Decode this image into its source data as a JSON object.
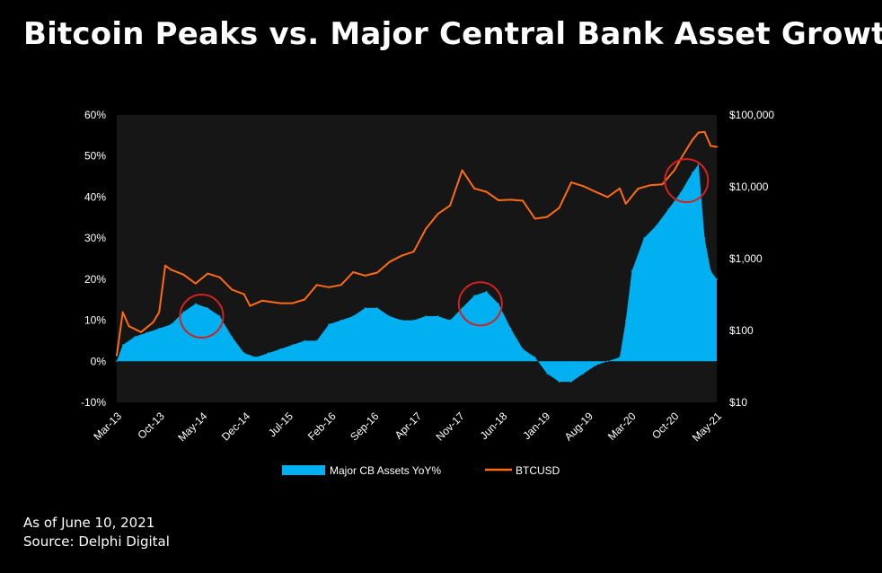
{
  "title": "Bitcoin Peaks vs. Major Central Bank Asset Growth",
  "footer": {
    "as_of": "As of June 10, 2021",
    "source": "Source: Delphi Digital"
  },
  "colors": {
    "background": "#000000",
    "plot_background": "#161616",
    "cb_assets": "#00b0f0",
    "btc": "#ff6a13",
    "highlight_circle": "#d62020"
  },
  "chart_data": {
    "type": "area",
    "title": "Bitcoin Peaks vs. Major Central Bank Asset Growth",
    "x_tick_labels": [
      "Mar-13",
      "Oct-13",
      "May-14",
      "Dec-14",
      "Jul-15",
      "Feb-16",
      "Sep-16",
      "Apr-17",
      "Nov-17",
      "Jun-18",
      "Jan-19",
      "Aug-19",
      "Mar-20",
      "Oct-20",
      "May-21"
    ],
    "x_range": [
      "2013-03",
      "2021-06"
    ],
    "y_left": {
      "tick_labels": [
        "60%",
        "50%",
        "40%",
        "30%",
        "20%",
        "10%",
        "0%",
        "-10%"
      ],
      "range": [
        -10,
        60
      ],
      "unit": "%"
    },
    "y_right": {
      "tick_labels": [
        "$100,000",
        "$10,000",
        "$1,000",
        "$100",
        "$10"
      ],
      "range": [
        10,
        100000
      ],
      "scale": "log"
    },
    "legend": {
      "position": "bottom-center",
      "entries": [
        "Major CB Assets YoY%",
        "BTCUSD"
      ]
    },
    "series": [
      {
        "name": "Major CB Assets YoY%",
        "kind": "area",
        "axis": "left",
        "points": [
          [
            "2013-03",
            0
          ],
          [
            "2013-04",
            4
          ],
          [
            "2013-06",
            6
          ],
          [
            "2013-08",
            7
          ],
          [
            "2013-10",
            8
          ],
          [
            "2013-12",
            9
          ],
          [
            "2014-02",
            12
          ],
          [
            "2014-04",
            14
          ],
          [
            "2014-06",
            13
          ],
          [
            "2014-08",
            11
          ],
          [
            "2014-10",
            6
          ],
          [
            "2014-12",
            2
          ],
          [
            "2015-02",
            1
          ],
          [
            "2015-04",
            2
          ],
          [
            "2015-06",
            3
          ],
          [
            "2015-08",
            4
          ],
          [
            "2015-10",
            5
          ],
          [
            "2015-12",
            5
          ],
          [
            "2016-02",
            9
          ],
          [
            "2016-04",
            10
          ],
          [
            "2016-06",
            11
          ],
          [
            "2016-08",
            13
          ],
          [
            "2016-10",
            13
          ],
          [
            "2016-12",
            11
          ],
          [
            "2017-02",
            10
          ],
          [
            "2017-04",
            10
          ],
          [
            "2017-06",
            11
          ],
          [
            "2017-08",
            11
          ],
          [
            "2017-10",
            10
          ],
          [
            "2017-12",
            13
          ],
          [
            "2018-02",
            16
          ],
          [
            "2018-04",
            17
          ],
          [
            "2018-06",
            14
          ],
          [
            "2018-08",
            8
          ],
          [
            "2018-10",
            3
          ],
          [
            "2018-12",
            1
          ],
          [
            "2019-02",
            -3
          ],
          [
            "2019-04",
            -5
          ],
          [
            "2019-06",
            -5
          ],
          [
            "2019-08",
            -3
          ],
          [
            "2019-10",
            -1
          ],
          [
            "2019-12",
            0
          ],
          [
            "2020-02",
            1
          ],
          [
            "2020-03",
            10
          ],
          [
            "2020-04",
            22
          ],
          [
            "2020-06",
            30
          ],
          [
            "2020-08",
            33
          ],
          [
            "2020-10",
            37
          ],
          [
            "2020-12",
            41
          ],
          [
            "2021-02",
            46
          ],
          [
            "2021-03",
            48
          ],
          [
            "2021-04",
            30
          ],
          [
            "2021-05",
            22
          ],
          [
            "2021-06",
            20
          ]
        ]
      },
      {
        "name": "BTCUSD",
        "kind": "line",
        "axis": "right",
        "points": [
          [
            "2013-03",
            45
          ],
          [
            "2013-04",
            180
          ],
          [
            "2013-05",
            115
          ],
          [
            "2013-07",
            95
          ],
          [
            "2013-09",
            130
          ],
          [
            "2013-10",
            180
          ],
          [
            "2013-11",
            800
          ],
          [
            "2013-12",
            700
          ],
          [
            "2014-02",
            600
          ],
          [
            "2014-04",
            450
          ],
          [
            "2014-06",
            620
          ],
          [
            "2014-08",
            550
          ],
          [
            "2014-10",
            370
          ],
          [
            "2014-12",
            320
          ],
          [
            "2015-01",
            220
          ],
          [
            "2015-03",
            260
          ],
          [
            "2015-06",
            240
          ],
          [
            "2015-08",
            240
          ],
          [
            "2015-10",
            270
          ],
          [
            "2015-12",
            430
          ],
          [
            "2016-02",
            400
          ],
          [
            "2016-04",
            430
          ],
          [
            "2016-06",
            650
          ],
          [
            "2016-08",
            580
          ],
          [
            "2016-10",
            640
          ],
          [
            "2016-12",
            900
          ],
          [
            "2017-02",
            1100
          ],
          [
            "2017-04",
            1250
          ],
          [
            "2017-06",
            2600
          ],
          [
            "2017-08",
            4200
          ],
          [
            "2017-10",
            5500
          ],
          [
            "2017-12",
            17000
          ],
          [
            "2018-02",
            9500
          ],
          [
            "2018-04",
            8500
          ],
          [
            "2018-06",
            6500
          ],
          [
            "2018-08",
            6600
          ],
          [
            "2018-10",
            6400
          ],
          [
            "2018-12",
            3600
          ],
          [
            "2019-02",
            3800
          ],
          [
            "2019-04",
            5100
          ],
          [
            "2019-06",
            11500
          ],
          [
            "2019-08",
            10200
          ],
          [
            "2019-10",
            8500
          ],
          [
            "2019-12",
            7200
          ],
          [
            "2020-02",
            9500
          ],
          [
            "2020-03",
            5800
          ],
          [
            "2020-05",
            9400
          ],
          [
            "2020-07",
            10500
          ],
          [
            "2020-09",
            10800
          ],
          [
            "2020-11",
            17000
          ],
          [
            "2020-12",
            24000
          ],
          [
            "2021-01",
            33000
          ],
          [
            "2021-02",
            45000
          ],
          [
            "2021-03",
            57000
          ],
          [
            "2021-04",
            58000
          ],
          [
            "2021-05",
            37000
          ],
          [
            "2021-06",
            36000
          ]
        ]
      }
    ],
    "annotations": [
      {
        "type": "circle",
        "date": "2014-05",
        "value": 11
      },
      {
        "type": "circle",
        "date": "2018-03",
        "value": 14
      },
      {
        "type": "circle",
        "date": "2021-01",
        "value": 44
      }
    ]
  }
}
